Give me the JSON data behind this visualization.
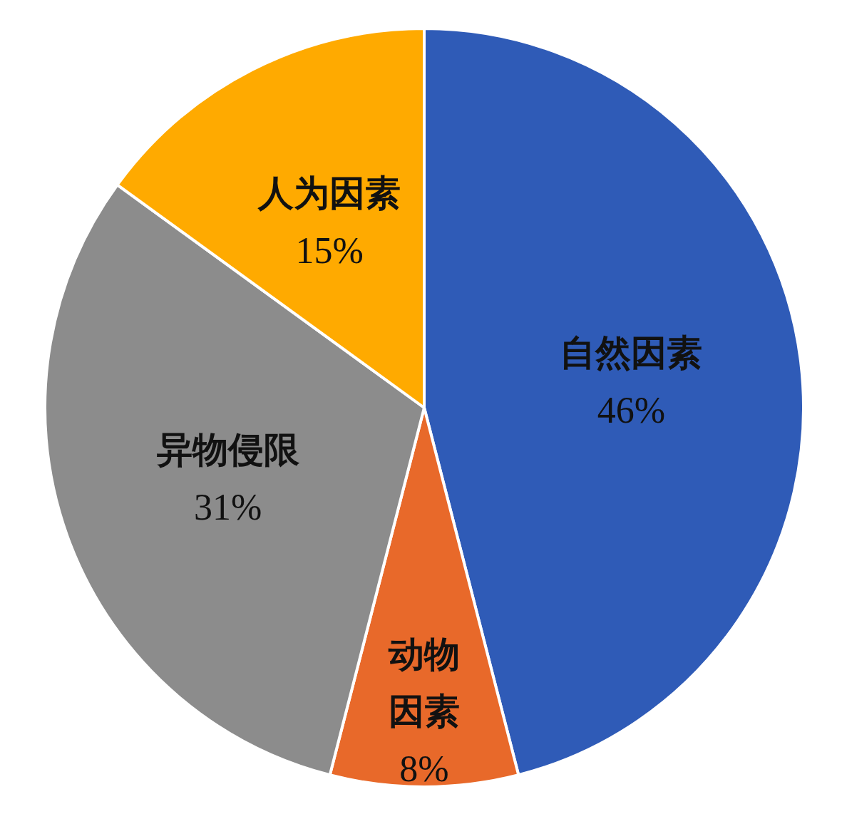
{
  "chart_data": {
    "type": "pie",
    "categories": [
      "自然因素",
      "动物因素",
      "异物侵限",
      "人为因素"
    ],
    "values": [
      46,
      8,
      31,
      15
    ],
    "colors": [
      "#2f5bb7",
      "#e8692a",
      "#8c8c8c",
      "#ffaa00"
    ],
    "value_labels": [
      "46%",
      "8%",
      "31%",
      "15%"
    ]
  }
}
